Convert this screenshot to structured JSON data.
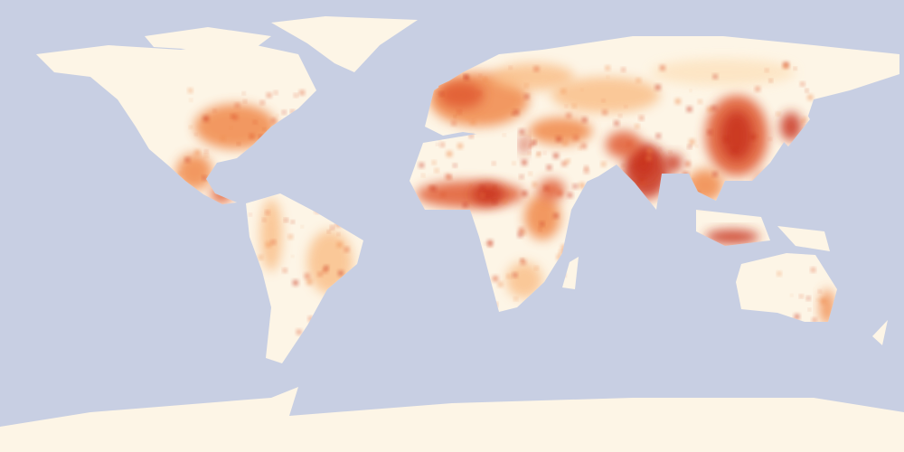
{
  "map": {
    "type": "world population density",
    "projection": "equirectangular",
    "ocean_color": "#c8cfe3",
    "land_color": "#fdf5e6",
    "density_colors": [
      "#fde3c0",
      "#f9c08a",
      "#f0884a",
      "#e05a32",
      "#c8321f"
    ]
  }
}
